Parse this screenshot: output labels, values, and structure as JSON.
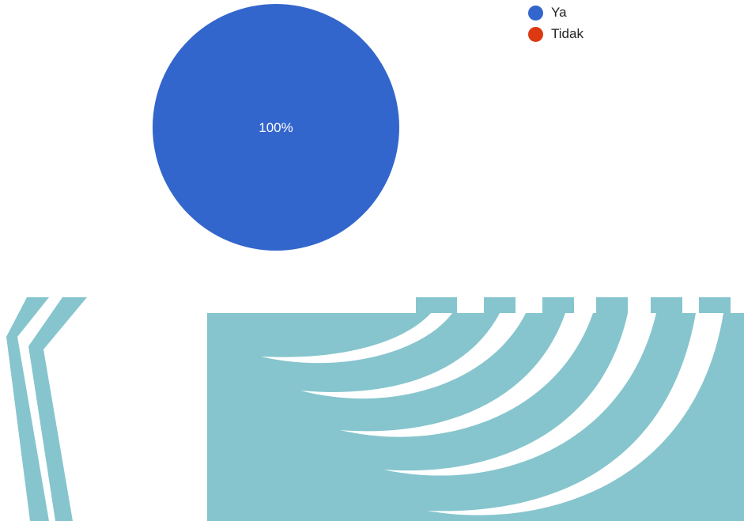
{
  "chart_data": {
    "type": "pie",
    "categories": [
      "Ya",
      "Tidak"
    ],
    "values": [
      100,
      0
    ],
    "data_labels": [
      "100%",
      ""
    ],
    "colors": [
      "#3366cc",
      "#dc3912"
    ],
    "legend_position": "top-right"
  },
  "decoration": {
    "color": "#86c5cd"
  }
}
